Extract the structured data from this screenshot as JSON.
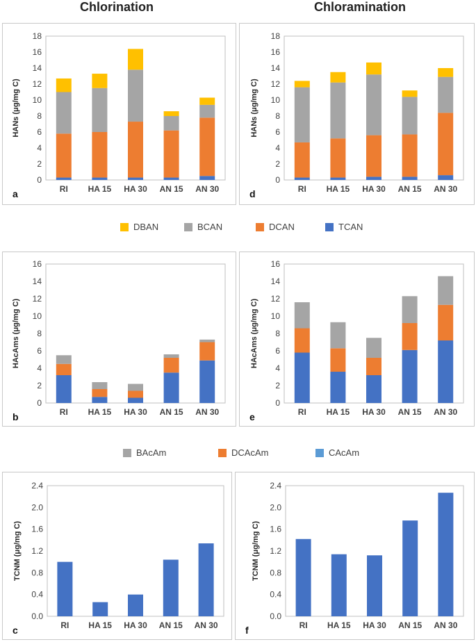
{
  "column_titles": {
    "left": "Chlorination",
    "right": "Chloramination"
  },
  "legends": {
    "hans": {
      "items": [
        {
          "name": "DBAN",
          "color": "#FFC000"
        },
        {
          "name": "BCAN",
          "color": "#A5A5A5"
        },
        {
          "name": "DCAN",
          "color": "#ED7D31"
        },
        {
          "name": "TCAN",
          "color": "#4472C4"
        }
      ]
    },
    "hacams": {
      "items": [
        {
          "name": "BAcAm",
          "color": "#A5A5A5"
        },
        {
          "name": "DCAcAm",
          "color": "#ED7D31"
        },
        {
          "name": "CAcAm",
          "color": "#5B9BD5"
        }
      ]
    }
  },
  "chart_data": [
    {
      "id": "a",
      "type": "bar",
      "stacked": true,
      "label": "a",
      "categories": [
        "RI",
        "HA 15",
        "HA 30",
        "AN 15",
        "AN 30"
      ],
      "ylabel": "HANs (μg/mg C)",
      "xlabel": "",
      "ylim": [
        0,
        18
      ],
      "yticks": [
        "0",
        "2",
        "4",
        "6",
        "8",
        "10",
        "12",
        "14",
        "16",
        "18"
      ],
      "series": [
        {
          "name": "TCAN",
          "color": "#4472C4",
          "values": [
            0.3,
            0.3,
            0.3,
            0.3,
            0.5
          ]
        },
        {
          "name": "DCAN",
          "color": "#ED7D31",
          "values": [
            5.5,
            5.7,
            7.0,
            5.9,
            7.3
          ]
        },
        {
          "name": "BCAN",
          "color": "#A5A5A5",
          "values": [
            5.2,
            5.5,
            6.5,
            1.8,
            1.6
          ]
        },
        {
          "name": "DBAN",
          "color": "#FFC000",
          "values": [
            1.7,
            1.8,
            2.6,
            0.6,
            0.9
          ]
        }
      ]
    },
    {
      "id": "d",
      "type": "bar",
      "stacked": true,
      "label": "d",
      "categories": [
        "RI",
        "HA 15",
        "HA 30",
        "AN 15",
        "AN 30"
      ],
      "ylabel": "HANs (μg/mg C)",
      "xlabel": "",
      "ylim": [
        0,
        18
      ],
      "yticks": [
        "0",
        "2",
        "4",
        "6",
        "8",
        "10",
        "12",
        "14",
        "16",
        "18"
      ],
      "series": [
        {
          "name": "TCAN",
          "color": "#4472C4",
          "values": [
            0.3,
            0.3,
            0.4,
            0.4,
            0.6
          ]
        },
        {
          "name": "DCAN",
          "color": "#ED7D31",
          "values": [
            4.4,
            4.9,
            5.2,
            5.3,
            7.8
          ]
        },
        {
          "name": "BCAN",
          "color": "#A5A5A5",
          "values": [
            6.9,
            7.0,
            7.6,
            4.7,
            4.5
          ]
        },
        {
          "name": "DBAN",
          "color": "#FFC000",
          "values": [
            0.8,
            1.3,
            1.5,
            0.8,
            1.1
          ]
        }
      ]
    },
    {
      "id": "b",
      "type": "bar",
      "stacked": true,
      "label": "b",
      "categories": [
        "RI",
        "HA 15",
        "HA 30",
        "AN 15",
        "AN 30"
      ],
      "ylabel": "HAcAms (μg/mg C)",
      "xlabel": "",
      "ylim": [
        0,
        16
      ],
      "yticks": [
        "0",
        "2",
        "4",
        "6",
        "8",
        "10",
        "12",
        "14",
        "16"
      ],
      "series": [
        {
          "name": "CAcAm",
          "color": "#4472C4",
          "values": [
            3.2,
            0.7,
            0.6,
            3.5,
            4.9
          ]
        },
        {
          "name": "DCAcAm",
          "color": "#ED7D31",
          "values": [
            1.3,
            0.9,
            0.8,
            1.7,
            2.1
          ]
        },
        {
          "name": "BAcAm",
          "color": "#A5A5A5",
          "values": [
            1.0,
            0.8,
            0.8,
            0.4,
            0.3
          ]
        }
      ]
    },
    {
      "id": "e",
      "type": "bar",
      "stacked": true,
      "label": "e",
      "categories": [
        "RI",
        "HA 15",
        "HA 30",
        "AN 15",
        "AN 30"
      ],
      "ylabel": "HAcAms (μg/mg C)",
      "xlabel": "",
      "ylim": [
        0,
        16
      ],
      "yticks": [
        "0",
        "2",
        "4",
        "6",
        "8",
        "10",
        "12",
        "14",
        "16"
      ],
      "series": [
        {
          "name": "CAcAm",
          "color": "#4472C4",
          "values": [
            5.8,
            3.6,
            3.2,
            6.1,
            7.2
          ]
        },
        {
          "name": "DCAcAm",
          "color": "#ED7D31",
          "values": [
            2.8,
            2.7,
            2.0,
            3.1,
            4.1
          ]
        },
        {
          "name": "BAcAm",
          "color": "#A5A5A5",
          "values": [
            3.0,
            3.0,
            2.3,
            3.1,
            3.3
          ]
        }
      ]
    },
    {
      "id": "c",
      "type": "bar",
      "stacked": false,
      "label": "c",
      "categories": [
        "RI",
        "HA 15",
        "HA 30",
        "AN 15",
        "AN 30"
      ],
      "ylabel": "TCNM (μg/mg C)",
      "xlabel": "",
      "ylim": [
        0,
        2.4
      ],
      "yticks": [
        "0.0",
        "0.4",
        "0.8",
        "1.2",
        "1.6",
        "2.0",
        "2.4"
      ],
      "series": [
        {
          "name": "TCNM",
          "color": "#4472C4",
          "values": [
            1.0,
            0.26,
            0.4,
            1.04,
            1.34
          ]
        }
      ]
    },
    {
      "id": "f",
      "type": "bar",
      "stacked": false,
      "label": "f",
      "categories": [
        "RI",
        "HA 15",
        "HA 30",
        "AN 15",
        "AN 30"
      ],
      "ylabel": "TCNM (μg/mg C)",
      "xlabel": "",
      "ylim": [
        0,
        2.4
      ],
      "yticks": [
        "0.0",
        "0.4",
        "0.8",
        "1.2",
        "1.6",
        "2.0",
        "2.4"
      ],
      "series": [
        {
          "name": "TCNM",
          "color": "#4472C4",
          "values": [
            1.42,
            1.14,
            1.12,
            1.76,
            2.27
          ]
        }
      ]
    }
  ]
}
